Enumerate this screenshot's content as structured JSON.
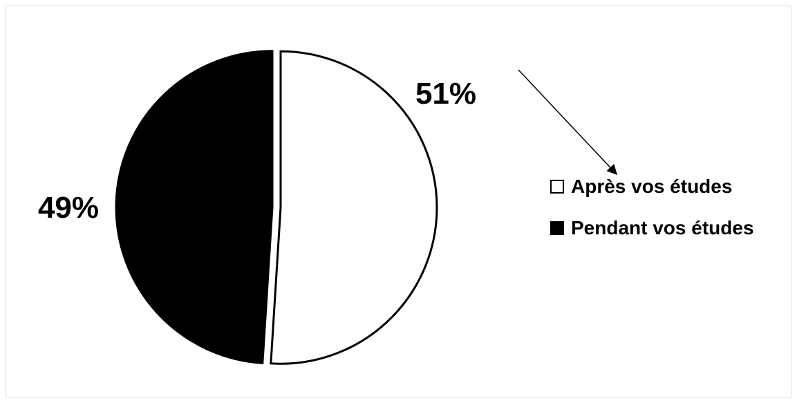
{
  "chart_data": {
    "type": "pie",
    "slices": [
      {
        "label": "Après vos études",
        "value": 51,
        "display": "51%",
        "color": "#ffffff"
      },
      {
        "label": "Pendant vos études",
        "value": 49,
        "display": "49%",
        "color": "#000000"
      }
    ],
    "legend_position": "right",
    "annotations": [
      {
        "type": "arrow",
        "from": "51%",
        "to": "Après vos études"
      }
    ]
  }
}
